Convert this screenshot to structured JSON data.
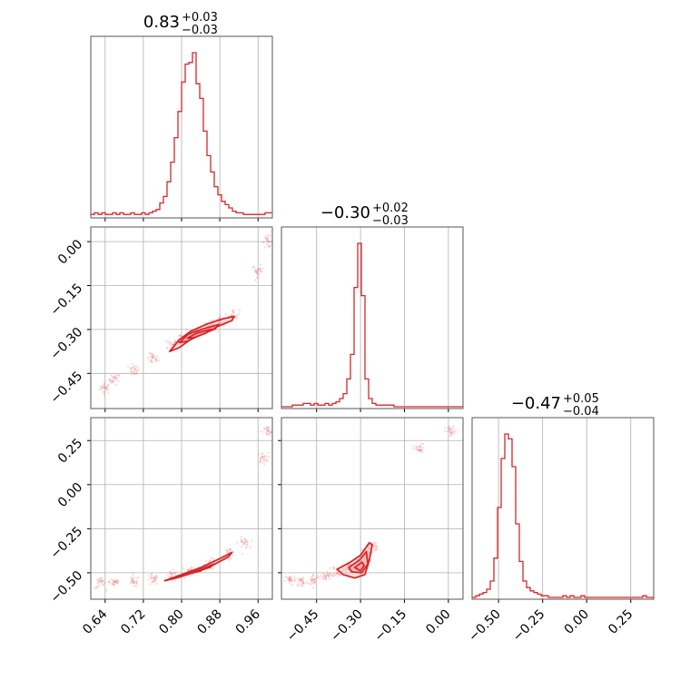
{
  "chart_data": {
    "type": "corner",
    "color": "#d62728",
    "fill_color": "#f2a6a9",
    "grid": true,
    "parameters": [
      {
        "title_value": "0.83",
        "title_plus": "+0.03",
        "title_minus": "−0.03",
        "range": [
          0.61,
          0.99
        ],
        "ticks": [
          0.64,
          0.72,
          0.8,
          0.88,
          0.96
        ],
        "tick_labels": [
          "0.64",
          "0.72",
          "0.80",
          "0.88",
          "0.96"
        ]
      },
      {
        "title_value": "−0.30",
        "title_plus": "+0.02",
        "title_minus": "−0.03",
        "range": [
          -0.57,
          0.05
        ],
        "ticks": [
          -0.45,
          -0.3,
          -0.15,
          0.0
        ],
        "tick_labels": [
          "−0.45",
          "−0.30",
          "−0.15",
          "0.00"
        ]
      },
      {
        "title_value": "−0.47",
        "title_plus": "+0.05",
        "title_minus": "−0.04",
        "range": [
          -0.65,
          0.38
        ],
        "ticks": [
          -0.5,
          -0.25,
          0.0,
          0.25
        ],
        "tick_labels": [
          "−0.50",
          "−0.25",
          "0.00",
          "0.25"
        ]
      }
    ],
    "histograms": [
      {
        "param": 0,
        "bin_edges_range": [
          0.61,
          0.99
        ],
        "heights": [
          0.01,
          0.02,
          0.01,
          0.02,
          0.01,
          0.01,
          0.02,
          0.01,
          0.02,
          0.01,
          0.01,
          0.02,
          0.01,
          0.01,
          0.02,
          0.01,
          0.02,
          0.03,
          0.04,
          0.08,
          0.12,
          0.21,
          0.33,
          0.48,
          0.64,
          0.82,
          0.93,
          0.94,
          1.0,
          0.81,
          0.72,
          0.52,
          0.37,
          0.27,
          0.18,
          0.13,
          0.09,
          0.07,
          0.05,
          0.03,
          0.02,
          0.02,
          0.01,
          0.01,
          0.01,
          0.01,
          0.01,
          0.01,
          0.02,
          0.02
        ]
      },
      {
        "param": 1,
        "bin_edges_range": [
          -0.57,
          0.05
        ],
        "heights": [
          0.0,
          0.0,
          0.0,
          0.01,
          0.01,
          0.01,
          0.02,
          0.02,
          0.01,
          0.02,
          0.01,
          0.01,
          0.02,
          0.01,
          0.02,
          0.03,
          0.05,
          0.08,
          0.17,
          0.32,
          0.73,
          1.0,
          0.68,
          0.17,
          0.05,
          0.02,
          0.01,
          0.01,
          0.01,
          0.01,
          0.01,
          0.0,
          0.0,
          0.0,
          0.0,
          0.0,
          0.0,
          0.0,
          0.0,
          0.0,
          0.0,
          0.0,
          0.0,
          0.0,
          0.0,
          0.0,
          0.0,
          0.0,
          0.0,
          0.0
        ]
      },
      {
        "param": 2,
        "bin_edges_range": [
          -0.65,
          0.38
        ],
        "heights": [
          0.0,
          0.01,
          0.02,
          0.03,
          0.05,
          0.1,
          0.24,
          0.55,
          0.85,
          1.0,
          0.97,
          0.8,
          0.45,
          0.22,
          0.1,
          0.06,
          0.04,
          0.03,
          0.02,
          0.01,
          0.01,
          0.0,
          0.0,
          0.0,
          0.0,
          0.01,
          0.0,
          0.01,
          0.0,
          0.0,
          0.01,
          0.0,
          0.0,
          0.0,
          0.0,
          0.0,
          0.0,
          0.0,
          0.0,
          0.0,
          0.0,
          0.0,
          0.0,
          0.0,
          0.0,
          0.0,
          0.0,
          0.01,
          0.0,
          0.0
        ]
      }
    ],
    "pairs": [
      {
        "x_param": 0,
        "y_param": 1,
        "contours": [
          [
            [
              0.775,
              -0.375
            ],
            [
              0.795,
              -0.335
            ],
            [
              0.82,
              -0.305
            ],
            [
              0.855,
              -0.28
            ],
            [
              0.888,
              -0.263
            ],
            [
              0.91,
              -0.255
            ],
            [
              0.905,
              -0.27
            ],
            [
              0.878,
              -0.288
            ],
            [
              0.848,
              -0.308
            ],
            [
              0.818,
              -0.335
            ],
            [
              0.795,
              -0.362
            ],
            [
              0.775,
              -0.375
            ]
          ],
          [
            [
              0.795,
              -0.345
            ],
            [
              0.815,
              -0.315
            ],
            [
              0.845,
              -0.298
            ],
            [
              0.878,
              -0.283
            ],
            [
              0.87,
              -0.298
            ],
            [
              0.84,
              -0.318
            ],
            [
              0.812,
              -0.34
            ],
            [
              0.795,
              -0.345
            ]
          ],
          [
            [
              0.812,
              -0.33
            ],
            [
              0.832,
              -0.312
            ],
            [
              0.86,
              -0.3
            ],
            [
              0.85,
              -0.313
            ],
            [
              0.826,
              -0.328
            ],
            [
              0.812,
              -0.33
            ]
          ]
        ],
        "sample_centers": [
          [
            0.64,
            -0.5
          ],
          [
            0.66,
            -0.47
          ],
          [
            0.7,
            -0.44
          ],
          [
            0.74,
            -0.4
          ],
          [
            0.78,
            -0.35
          ],
          [
            0.8,
            -0.33
          ],
          [
            0.83,
            -0.31
          ],
          [
            0.86,
            -0.29
          ],
          [
            0.88,
            -0.27
          ],
          [
            0.91,
            -0.25
          ],
          [
            0.96,
            -0.1
          ],
          [
            0.98,
            0.0
          ]
        ]
      },
      {
        "x_param": 0,
        "y_param": 2,
        "contours": [
          [
            [
              0.765,
              -0.545
            ],
            [
              0.8,
              -0.51
            ],
            [
              0.84,
              -0.47
            ],
            [
              0.88,
              -0.42
            ],
            [
              0.905,
              -0.385
            ],
            [
              0.898,
              -0.41
            ],
            [
              0.87,
              -0.45
            ],
            [
              0.835,
              -0.49
            ],
            [
              0.795,
              -0.525
            ],
            [
              0.765,
              -0.545
            ]
          ],
          [
            [
              0.79,
              -0.52
            ],
            [
              0.83,
              -0.49
            ],
            [
              0.868,
              -0.45
            ],
            [
              0.86,
              -0.468
            ],
            [
              0.825,
              -0.5
            ],
            [
              0.79,
              -0.52
            ]
          ],
          [
            [
              0.815,
              -0.5
            ],
            [
              0.845,
              -0.478
            ],
            [
              0.84,
              -0.49
            ],
            [
              0.815,
              -0.5
            ]
          ]
        ],
        "sample_centers": [
          [
            0.63,
            -0.56
          ],
          [
            0.66,
            -0.55
          ],
          [
            0.7,
            -0.55
          ],
          [
            0.74,
            -0.54
          ],
          [
            0.78,
            -0.52
          ],
          [
            0.82,
            -0.49
          ],
          [
            0.86,
            -0.45
          ],
          [
            0.9,
            -0.39
          ],
          [
            0.93,
            -0.33
          ],
          [
            0.97,
            0.15
          ],
          [
            0.98,
            0.3
          ]
        ]
      },
      {
        "x_param": 1,
        "y_param": 2,
        "contours": [
          [
            [
              -0.38,
              -0.48
            ],
            [
              -0.335,
              -0.44
            ],
            [
              -0.3,
              -0.4
            ],
            [
              -0.27,
              -0.33
            ],
            [
              -0.26,
              -0.34
            ],
            [
              -0.27,
              -0.43
            ],
            [
              -0.285,
              -0.51
            ],
            [
              -0.32,
              -0.53
            ],
            [
              -0.36,
              -0.51
            ],
            [
              -0.38,
              -0.48
            ]
          ],
          [
            [
              -0.34,
              -0.47
            ],
            [
              -0.305,
              -0.43
            ],
            [
              -0.28,
              -0.38
            ],
            [
              -0.275,
              -0.45
            ],
            [
              -0.295,
              -0.5
            ],
            [
              -0.33,
              -0.495
            ],
            [
              -0.34,
              -0.47
            ]
          ],
          [
            [
              -0.32,
              -0.47
            ],
            [
              -0.295,
              -0.44
            ],
            [
              -0.288,
              -0.46
            ],
            [
              -0.3,
              -0.49
            ],
            [
              -0.32,
              -0.47
            ]
          ]
        ],
        "sample_centers": [
          [
            -0.54,
            -0.54
          ],
          [
            -0.5,
            -0.55
          ],
          [
            -0.46,
            -0.54
          ],
          [
            -0.42,
            -0.52
          ],
          [
            -0.38,
            -0.49
          ],
          [
            -0.34,
            -0.47
          ],
          [
            -0.3,
            -0.45
          ],
          [
            -0.28,
            -0.4
          ],
          [
            -0.26,
            -0.35
          ],
          [
            -0.1,
            0.2
          ],
          [
            0.01,
            0.3
          ]
        ]
      }
    ]
  }
}
